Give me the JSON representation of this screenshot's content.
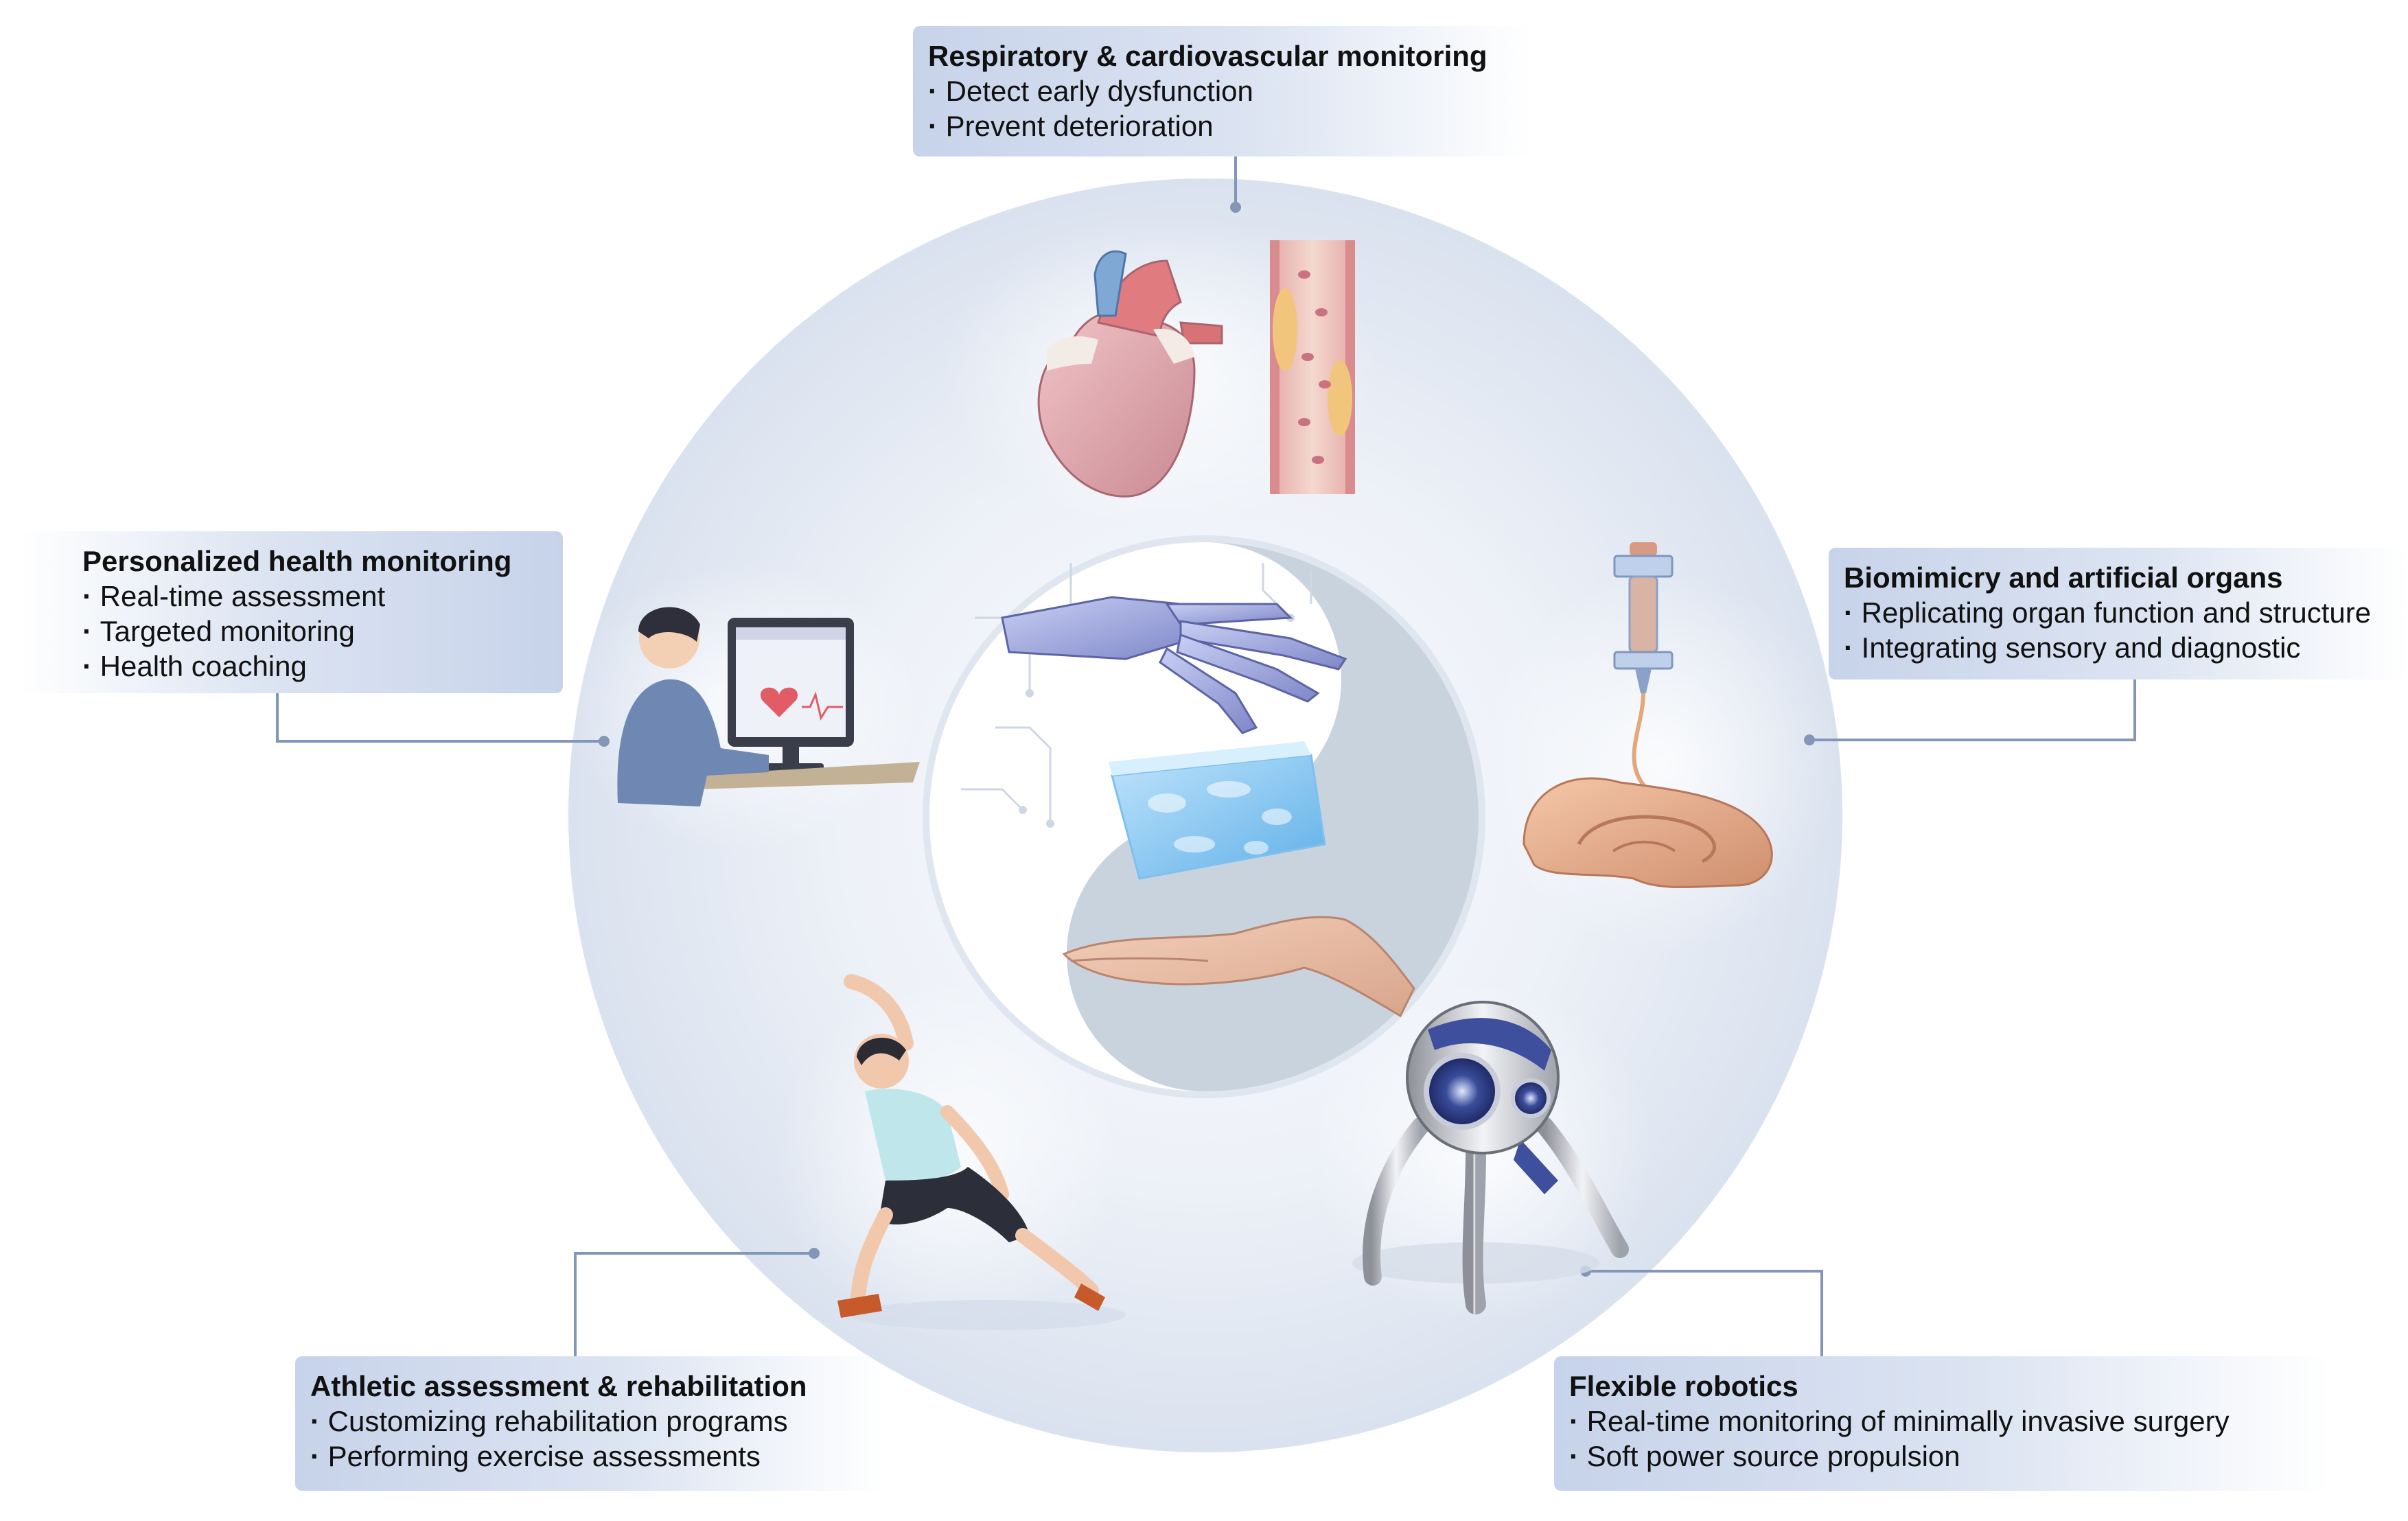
{
  "colors": {
    "ring": "#dfe6f1",
    "connector": "#8396b8",
    "box_accent": "#c7d3ea",
    "center_gray": "#c9d3de"
  },
  "boxes": {
    "cardio": {
      "title": "Respiratory & cardiovascular monitoring",
      "items": [
        "Detect early dysfunction",
        "Prevent deterioration"
      ]
    },
    "personal": {
      "title": "Personalized health monitoring",
      "items": [
        "Real-time assessment",
        "Targeted monitoring",
        "Health coaching"
      ]
    },
    "biomimicry": {
      "title": "Biomimicry and artificial organs",
      "items": [
        "Replicating organ function and structure",
        "Integrating sensory and diagnostic"
      ]
    },
    "athletic": {
      "title": "Athletic assessment & rehabilitation",
      "items": [
        "Customizing rehabilitation programs",
        "Performing exercise assessments"
      ]
    },
    "robotics": {
      "title": "Flexible robotics",
      "items": [
        "Real-time monitoring of minimally invasive surgery",
        "Soft power source propulsion"
      ]
    }
  },
  "illustrations": {
    "center": "robot-hand-hydrogel-icon",
    "heart": "heart-icon",
    "vessel": "blood-vessel-icon",
    "computer_user": "computer-user-icon",
    "bioprinter": "bioprinter-icon",
    "ear": "ear-icon",
    "athlete": "stretching-athlete-icon",
    "robot": "soft-robot-icon"
  }
}
